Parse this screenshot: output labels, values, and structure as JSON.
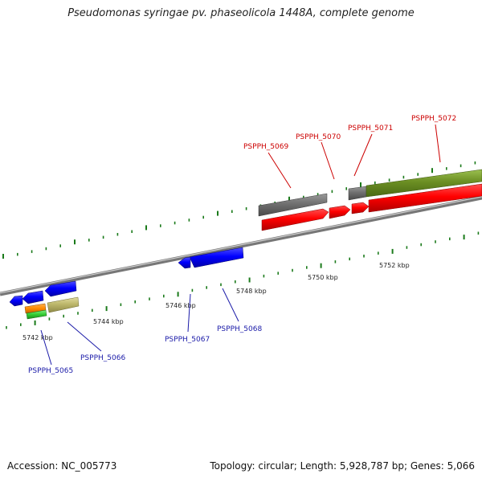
{
  "title": "Pseudomonas syringae pv. phaseolicola 1448A, complete genome",
  "footer": {
    "accession": "Accession: NC_005773",
    "topology": "Topology: circular; Length: 5,928,787 bp; Genes: 5,066"
  },
  "scale_labels": [
    "5742 kbp",
    "5744 kbp",
    "5746 kbp",
    "5748 kbp",
    "5750 kbp",
    "5752 kbp"
  ],
  "gene_labels": {
    "forward": [
      "PSPPH_5069",
      "PSPPH_5070",
      "PSPPH_5071",
      "PSPPH_5072"
    ],
    "reverse": [
      "PSPPH_5065",
      "PSPPH_5066",
      "PSPPH_5067",
      "PSPPH_5068"
    ]
  },
  "colors": {
    "forward_cds": "#ee0000",
    "reverse_cds": "#0000ee",
    "feature_grey": "#6e6e6e",
    "feature_olive": "#6b8e23",
    "feature_khaki": "#bdb76b",
    "feature_orange": "#ff8c00",
    "feature_green": "#33cc33",
    "tick": "#1a7a1a",
    "backbone": "#8c8c8c"
  }
}
